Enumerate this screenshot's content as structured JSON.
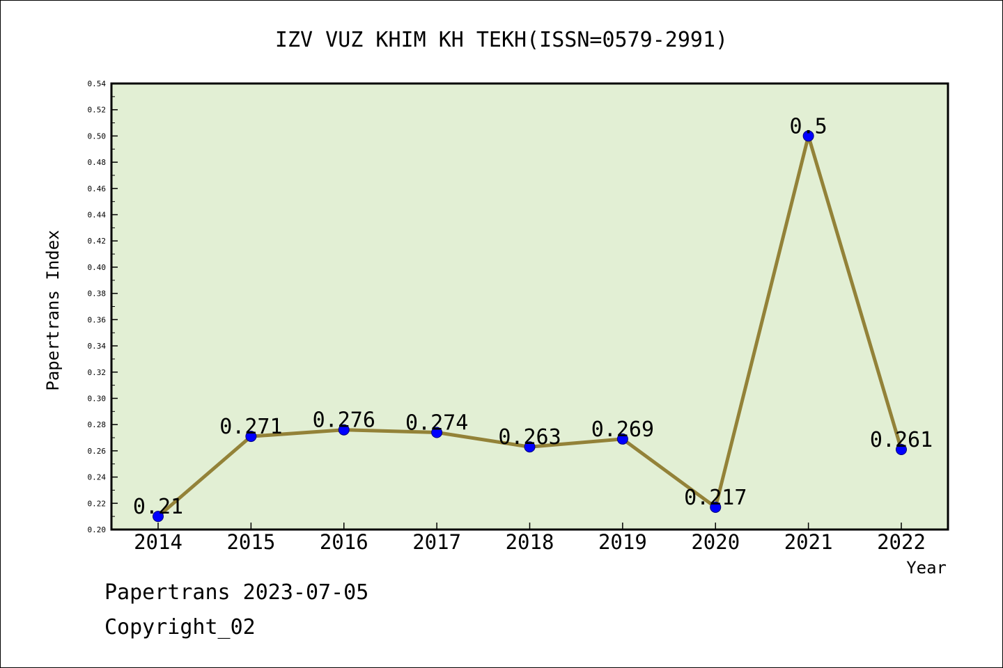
{
  "chart_data": {
    "type": "line",
    "title": "IZV VUZ KHIM KH TEKH(ISSN=0579-2991)",
    "xlabel": "Year",
    "ylabel": "Papertrans Index",
    "categories": [
      "2014",
      "2015",
      "2016",
      "2017",
      "2018",
      "2019",
      "2020",
      "2021",
      "2022"
    ],
    "values": [
      0.21,
      0.271,
      0.276,
      0.274,
      0.263,
      0.269,
      0.217,
      0.5,
      0.261
    ],
    "value_labels": [
      "0.21",
      "0.271",
      "0.276",
      "0.274",
      "0.263",
      "0.269",
      "0.217",
      "0.5",
      "0.261"
    ],
    "ylim": [
      0.2,
      0.54
    ],
    "yticks": [
      "0.20",
      "0.22",
      "0.24",
      "0.26",
      "0.28",
      "0.30",
      "0.32",
      "0.34",
      "0.36",
      "0.38",
      "0.40",
      "0.42",
      "0.44",
      "0.46",
      "0.48",
      "0.50",
      "0.52",
      "0.54"
    ],
    "grid": false,
    "colors": {
      "plot_background": "#e2efd4",
      "line": "#938238",
      "marker": "#0000ff",
      "axes": "#000000"
    }
  },
  "footer": {
    "line1": "Papertrans 2023-07-05",
    "line2": "Copyright_02"
  }
}
